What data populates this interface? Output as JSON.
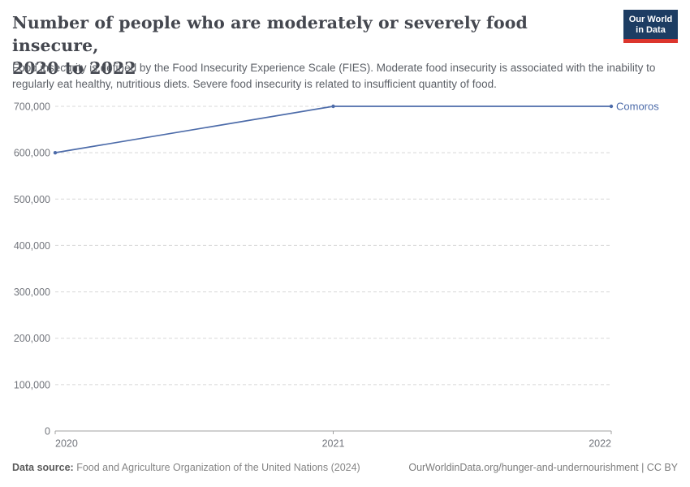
{
  "header": {
    "title_lines": [
      "Number of people who are moderately or severely food insecure,",
      "2020 to 2022"
    ],
    "subtitle": "Food insecurity is defined by the Food Insecurity Experience Scale (FIES). Moderate food insecurity is associated with the inability to regularly eat healthy, nutritious diets. Severe food insecurity is related to insufficient quantity of food.",
    "logo": {
      "line1": "Our World",
      "line2": "in Data"
    }
  },
  "chart_data": {
    "type": "line",
    "title": "Number of people who are moderately or severely food insecure, 2020 to 2022",
    "x": [
      2020,
      2021,
      2022
    ],
    "xtick_labels": [
      "2020",
      "2021",
      "2022"
    ],
    "series": [
      {
        "name": "Comoros",
        "values": [
          600000,
          700000,
          700000
        ],
        "color": "#4c6ba9"
      }
    ],
    "xlabel": "",
    "ylabel": "",
    "ylim": [
      0,
      700000
    ],
    "yticks": [
      0,
      100000,
      200000,
      300000,
      400000,
      500000,
      600000,
      700000
    ],
    "ytick_labels": [
      "0",
      "100,000",
      "200,000",
      "300,000",
      "400,000",
      "500,000",
      "600,000",
      "700,000"
    ],
    "grid": "horizontal-dashed",
    "legend_position": "end-of-line-label"
  },
  "footer": {
    "data_source_label": "Data source:",
    "data_source_text": " Food and Agriculture Organization of the United Nations (2024)",
    "link": "OurWorldinData.org/hunger-and-undernourishment | CC BY"
  },
  "colors": {
    "series": "#4c6ba9",
    "title": "#44474f",
    "subtitle": "#5b5f66",
    "tick_label": "#73767d",
    "gridline": "#d8d8d8",
    "axis": "#a1a1a1",
    "logo_navy": "#1d3d63",
    "logo_red": "#dc352d"
  }
}
